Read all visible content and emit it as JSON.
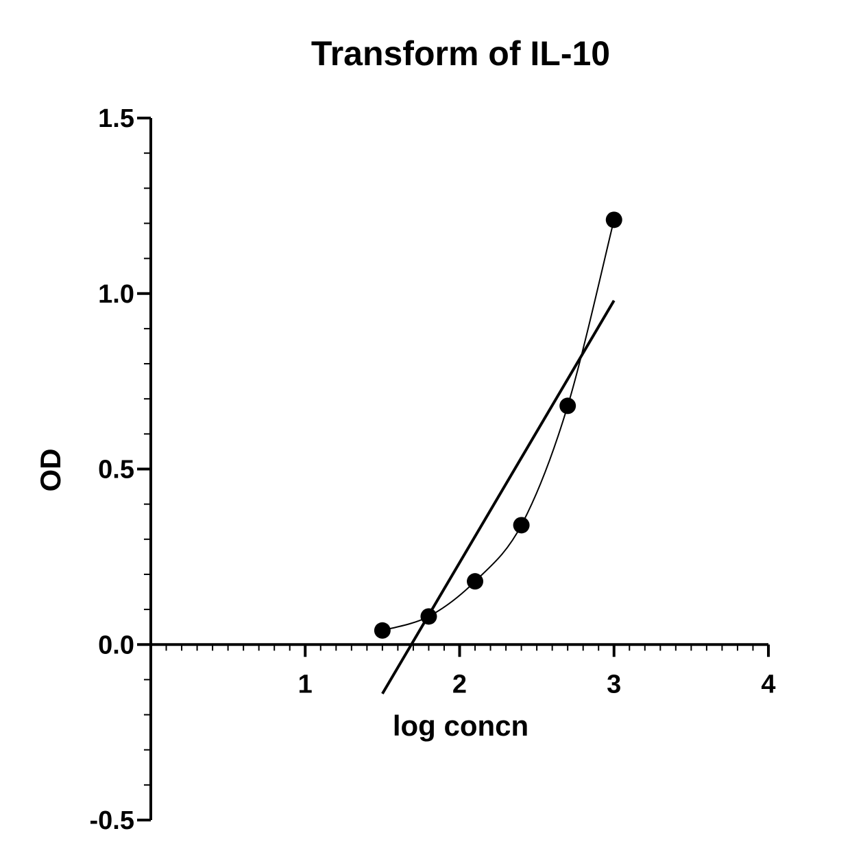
{
  "chart_data": {
    "type": "scatter",
    "title": "Transform of  IL-10",
    "xlabel": "log concn",
    "ylabel": "OD",
    "xlim": [
      0,
      4
    ],
    "ylim": [
      -0.5,
      1.5
    ],
    "x_ticks": [
      1,
      2,
      3,
      4
    ],
    "x_tick_labels": [
      "1",
      "2",
      "3",
      "4"
    ],
    "y_ticks": [
      -0.5,
      0.0,
      0.5,
      1.0,
      1.5
    ],
    "y_tick_labels": [
      "-0.5",
      "0.0",
      "0.5",
      "1.0",
      "1.5"
    ],
    "x_minor_step": 0.1,
    "y_minor_step": 0.1,
    "grid": false,
    "legend": "none",
    "points": {
      "x": [
        1.5,
        1.8,
        2.1,
        2.4,
        2.7,
        3.0
      ],
      "y": [
        0.04,
        0.08,
        0.18,
        0.34,
        0.68,
        1.21
      ]
    },
    "curve_fit": {
      "type": "smooth",
      "x_range": [
        1.5,
        3.0
      ]
    },
    "linear_fit": {
      "x": [
        1.5,
        3.0
      ],
      "y": [
        -0.14,
        0.98
      ]
    },
    "colors": {
      "ink": "#000000",
      "background": "#ffffff"
    }
  }
}
